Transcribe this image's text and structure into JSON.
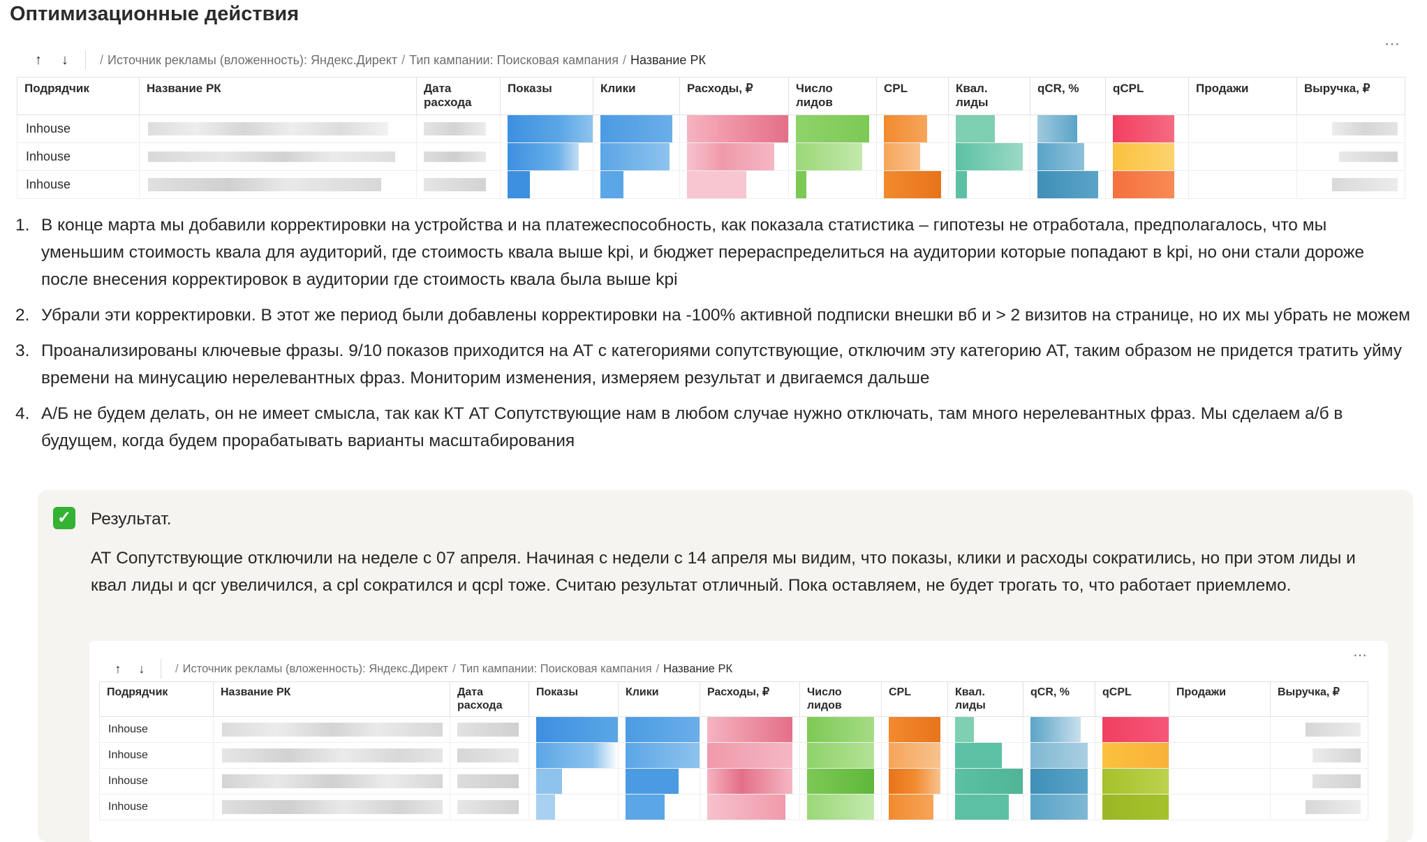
{
  "page_title": "Оптимизационные действия",
  "more_icon": "⋯",
  "toolbar": {
    "up_icon": "↑",
    "down_icon": "↓",
    "crumbs": [
      "Источник рекламы (вложенность): Яндекс.Директ",
      "Тип кампании: Поисковая кампания",
      "Название РК"
    ]
  },
  "columns": [
    "Подрядчик",
    "Название РК",
    "Дата расхода",
    "Показы",
    "Клики",
    "Расходы, ₽",
    "Число лидов",
    "CPL",
    "Квал. лиды",
    "qCR, %",
    "qCPL",
    "Продажи",
    "Выручка, ₽"
  ],
  "table1": {
    "rows": [
      {
        "contractor": "Inhouse"
      },
      {
        "contractor": "Inhouse"
      },
      {
        "contractor": "Inhouse"
      }
    ]
  },
  "notes": [
    "В конце марта мы добавили корректировки на устройства и на платежеспособность, как показала статистика – гипотезы не отработала, предполагалось, что мы уменьшим стоимость квала для аудиторий, где стоимость квала выше kpi, и бюджет перераспределиться на аудитории которые попадают в kpi, но они стали дороже после внесения корректировок в аудитории где стоимость квала была выше kpi",
    "Убрали эти корректировки. В этот же период были добавлены корректировки на -100% активной подписки внешки вб и > 2 визитов на странице, но их мы убрать не можем",
    "Проанализированы ключевые фразы. 9/10 показов приходится на АТ с категориями сопутствующие, отключим эту категорию АТ, таким образом не придется тратить уйму времени на минусацию нерелевантных фраз. Мониторим изменения, измеряем результат и двигаемся дальше",
    "А/Б не будем делать, он не имеет смысла, так как КТ АТ Сопутствующие нам в любом случае нужно отключать, там много нерелевантных фраз. Мы сделаем а/б в будущем, когда будем прорабатывать варианты масштабирования"
  ],
  "note_numbers": [
    "1.",
    "2.",
    "3.",
    "4."
  ],
  "result": {
    "check_icon": "✓",
    "title": "Результат.",
    "text": "АТ Сопутствующие отключили на неделе с 07 апреля. Начиная с недели с 14 апреля мы видим, что показы, клики и расходы сократились, но при этом лиды и квал лиды и qcr увеличился, а cpl сократился и qcpl тоже. Считаю результат отличный. Пока оставляем, не будет трогать то, что работает приемлемо."
  },
  "table2": {
    "rows": [
      {
        "contractor": "Inhouse"
      },
      {
        "contractor": "Inhouse"
      },
      {
        "contractor": "Inhouse"
      },
      {
        "contractor": "Inhouse"
      }
    ]
  },
  "colors": {
    "blurred_text": "#d9d9d9",
    "impressions": "#5aa6e6",
    "clicks": "#4b9be3",
    "spend": "#ef8fa2",
    "leads": "#8fd36a",
    "cpl": "#f28a2e",
    "qual_leads": "#5cc1a4",
    "qcr": "#5aa4c8",
    "qcpl_high": "#f23f5f",
    "qcpl_mid": "#fbc13e",
    "qcpl_low": "#a5c12a"
  }
}
